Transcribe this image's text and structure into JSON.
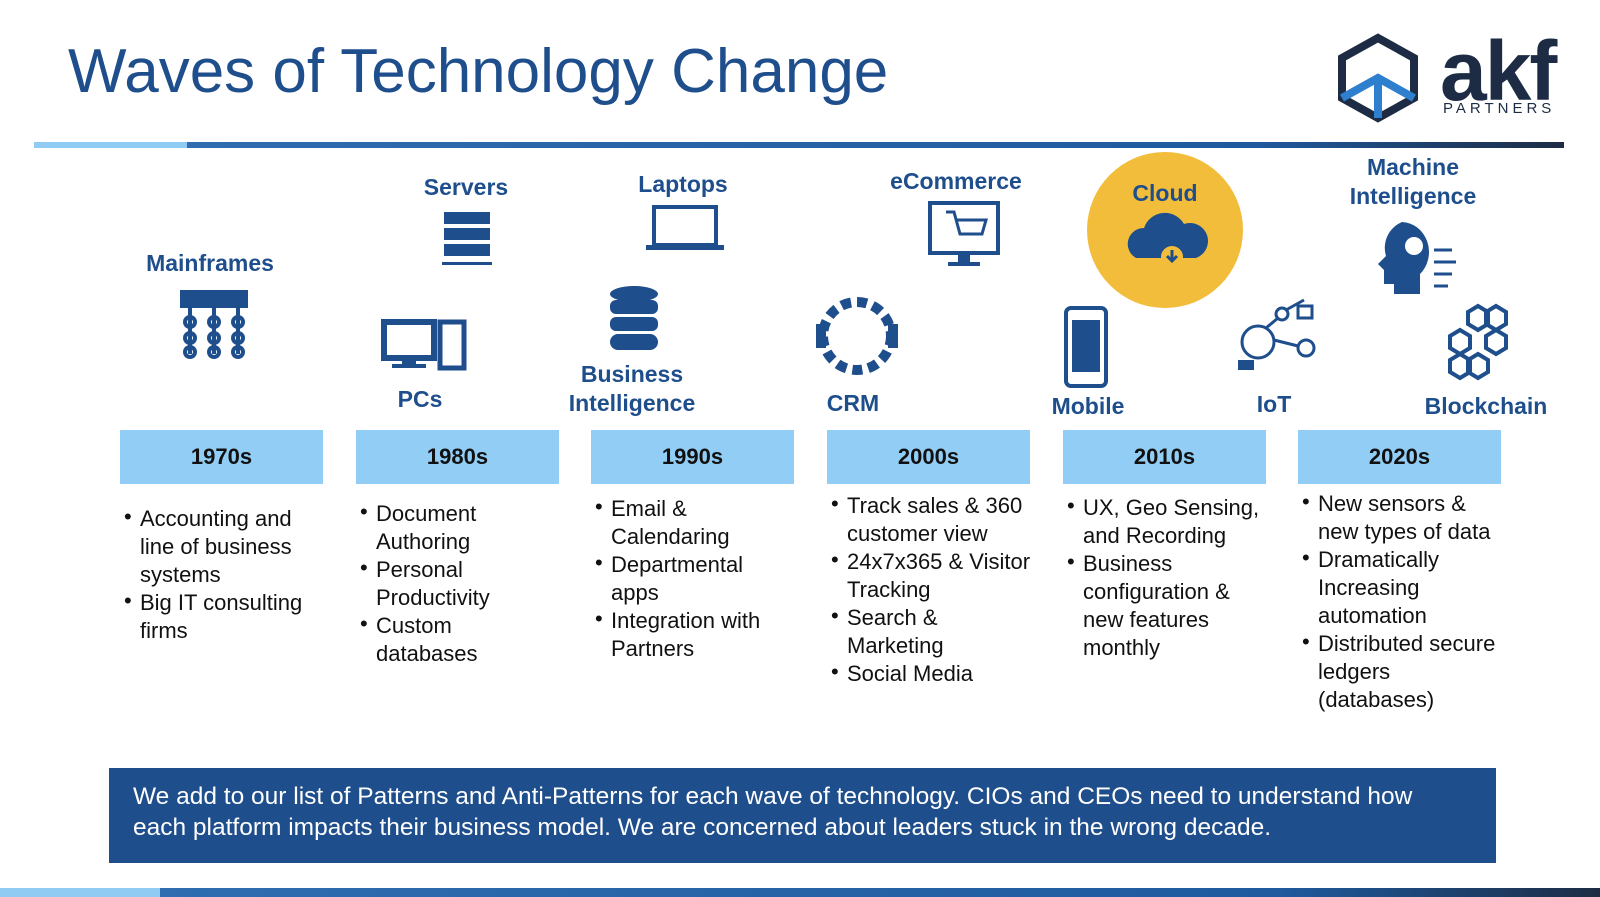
{
  "header": {
    "title": "Waves of Technology Change"
  },
  "logo": {
    "name": "akf",
    "tagline": "PARTNERS"
  },
  "technologies": [
    "Mainframes",
    "Servers",
    "PCs",
    "Laptops",
    "Business Intelligence",
    "eCommerce",
    "CRM",
    "Cloud",
    "Mobile",
    "IoT",
    "Machine Intelligence",
    "Blockchain"
  ],
  "decades": [
    {
      "label": "1970s",
      "points": [
        "Accounting and line of business systems",
        "Big IT consulting firms"
      ]
    },
    {
      "label": "1980s",
      "points": [
        "Document Authoring",
        "Personal Productivity",
        "Custom databases"
      ]
    },
    {
      "label": "1990s",
      "points": [
        "Email & Calendaring",
        "Departmental apps",
        "Integration with Partners"
      ]
    },
    {
      "label": "2000s",
      "points": [
        "Track sales & 360 customer view",
        "24x7x365 & Visitor Tracking",
        "Search & Marketing",
        "Social Media"
      ]
    },
    {
      "label": "2010s",
      "points": [
        "UX, Geo Sensing, and Recording",
        "Business configuration & new features monthly"
      ]
    },
    {
      "label": "2020s",
      "points": [
        "New sensors & new types of data",
        "Dramatically Increasing automation",
        "Distributed secure ledgers (databases)"
      ]
    }
  ],
  "footer": {
    "text": "We add to our list of Patterns and Anti-Patterns for each wave of technology.  CIOs and CEOs need to understand how each platform impacts their business model.  We are concerned about leaders stuck in the wrong decade."
  }
}
